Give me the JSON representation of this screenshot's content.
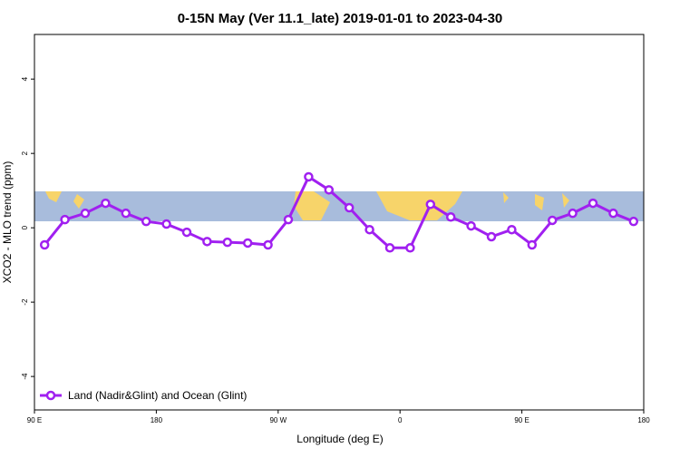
{
  "chart_data": {
    "type": "line",
    "title": "0-15N May (Ver 11.1_late)   2019-01-01 to 2023-04-30",
    "x_label": "Longitude (deg E)",
    "y_label": "XCO2 - MLO trend (ppm)",
    "x": [
      97.5,
      112.5,
      127.5,
      142.5,
      157.5,
      172.5,
      187.5,
      202.5,
      217.5,
      232.5,
      247.5,
      262.5,
      277.5,
      292.5,
      307.5,
      322.5,
      337.5,
      352.5,
      367.5,
      382.5,
      397.5,
      412.5,
      427.5,
      442.5,
      457.5,
      472.5,
      487.5,
      502.5,
      517.5,
      532.5
    ],
    "series": [
      {
        "name": "Land (Nadir&Glint) and Ocean (Glint)",
        "color": "#a020f0",
        "values": [
          -0.46,
          0.22,
          0.39,
          0.66,
          0.39,
          0.17,
          0.1,
          -0.12,
          -0.37,
          -0.39,
          -0.41,
          -0.46,
          0.22,
          1.37,
          1.02,
          0.54,
          -0.05,
          -0.54,
          -0.54,
          0.63,
          0.29,
          0.05,
          -0.24,
          -0.05,
          -0.46,
          0.2,
          0.39,
          0.66,
          0.39,
          0.17
        ]
      }
    ],
    "xlim": [
      90,
      540
    ],
    "xticks": [
      {
        "value": 90,
        "label": "90 E"
      },
      180,
      {
        "value": 270,
        "label": "90 W"
      },
      {
        "value": 360,
        "label": "0"
      },
      {
        "value": 450,
        "label": "90 E"
      },
      {
        "value": 540,
        "label": "180"
      }
    ],
    "ylim": [
      -4.9,
      5.2
    ],
    "yticks": [
      -4,
      -2,
      0,
      2,
      4
    ],
    "legend": "bottom-left"
  }
}
